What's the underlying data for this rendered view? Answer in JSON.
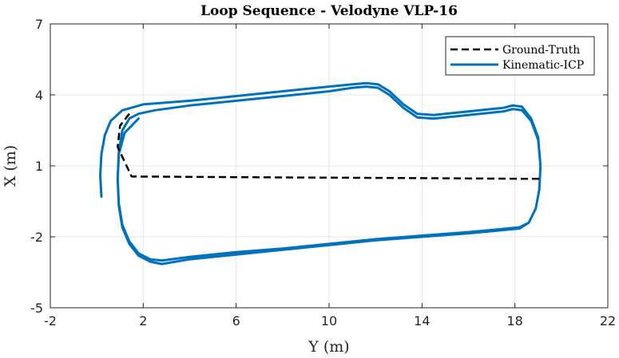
{
  "chart_data": {
    "type": "line",
    "title": "Loop Sequence - Velodyne VLP-16",
    "xlabel": "Y (m)",
    "ylabel": "X (m)",
    "xlim": [
      -2,
      22
    ],
    "ylim": [
      -5,
      7
    ],
    "xticks": [
      -2,
      2,
      6,
      10,
      14,
      18,
      22
    ],
    "yticks": [
      -5,
      -2,
      1,
      4,
      7
    ],
    "grid": true,
    "legend_position": "top-right",
    "colors": {
      "ground_truth": "#000000",
      "kinematic_icp": "#0072BD",
      "grid": "#e6e6e6",
      "axes": "#262626"
    },
    "series": [
      {
        "name": "Ground-Truth",
        "style": "dashed",
        "x": [
          1.4,
          1.0,
          0.9,
          1.5,
          3.0,
          6.0,
          10.0,
          14.0,
          17.0,
          19.0,
          19.1
        ],
        "y": [
          3.2,
          2.7,
          1.8,
          0.55,
          0.54,
          0.52,
          0.5,
          0.48,
          0.46,
          0.45,
          0.45
        ]
      },
      {
        "name": "Kinematic-ICP",
        "style": "solid",
        "x": [
          0.2,
          0.15,
          0.2,
          0.35,
          0.6,
          1.1,
          2.0,
          4.0,
          6.0,
          8.0,
          10.0,
          11.0,
          11.6,
          12.1,
          12.6,
          13.2,
          13.8,
          14.5,
          15.5,
          16.5,
          17.5,
          17.9,
          18.3,
          18.7,
          19.0,
          19.1,
          19.05,
          18.9,
          18.6,
          18.2,
          16.0,
          14.0,
          12.0,
          10.0,
          8.0,
          6.0,
          4.0,
          2.8,
          2.3,
          1.8,
          1.4,
          1.1,
          0.95,
          0.9,
          0.95,
          1.1,
          1.4,
          1.8,
          2.5,
          4.0,
          6.0,
          8.0,
          10.0,
          11.0,
          11.6,
          12.1,
          12.6,
          13.2,
          13.8,
          14.5,
          15.5,
          16.5,
          17.5,
          17.9,
          18.3,
          18.7,
          19.0,
          19.1,
          19.05,
          18.9,
          18.6,
          18.2,
          16.0,
          14.0,
          12.0,
          10.0,
          8.0,
          6.0,
          4.0,
          2.8,
          2.3,
          1.8,
          1.4,
          1.1,
          0.95,
          0.9,
          0.95,
          1.2,
          1.8
        ],
        "y": [
          -0.3,
          0.6,
          1.5,
          2.3,
          2.9,
          3.35,
          3.6,
          3.75,
          3.95,
          4.15,
          4.35,
          4.45,
          4.5,
          4.45,
          4.15,
          3.6,
          3.2,
          3.15,
          3.25,
          3.35,
          3.45,
          3.55,
          3.5,
          3.0,
          2.2,
          1.0,
          0.0,
          -0.8,
          -1.4,
          -1.6,
          -1.8,
          -1.95,
          -2.1,
          -2.3,
          -2.5,
          -2.65,
          -2.85,
          -3.0,
          -2.95,
          -2.7,
          -2.2,
          -1.5,
          -0.6,
          0.5,
          1.6,
          2.5,
          3.0,
          3.2,
          3.35,
          3.55,
          3.75,
          3.95,
          4.15,
          4.3,
          4.35,
          4.3,
          4.0,
          3.45,
          3.05,
          3.0,
          3.1,
          3.2,
          3.3,
          3.4,
          3.35,
          2.9,
          2.1,
          1.0,
          0.0,
          -0.8,
          -1.4,
          -1.65,
          -1.85,
          -2.0,
          -2.15,
          -2.35,
          -2.55,
          -2.75,
          -2.95,
          -3.15,
          -3.05,
          -2.8,
          -2.3,
          -1.6,
          -0.7,
          0.4,
          1.5,
          2.4,
          3.0
        ]
      }
    ]
  }
}
